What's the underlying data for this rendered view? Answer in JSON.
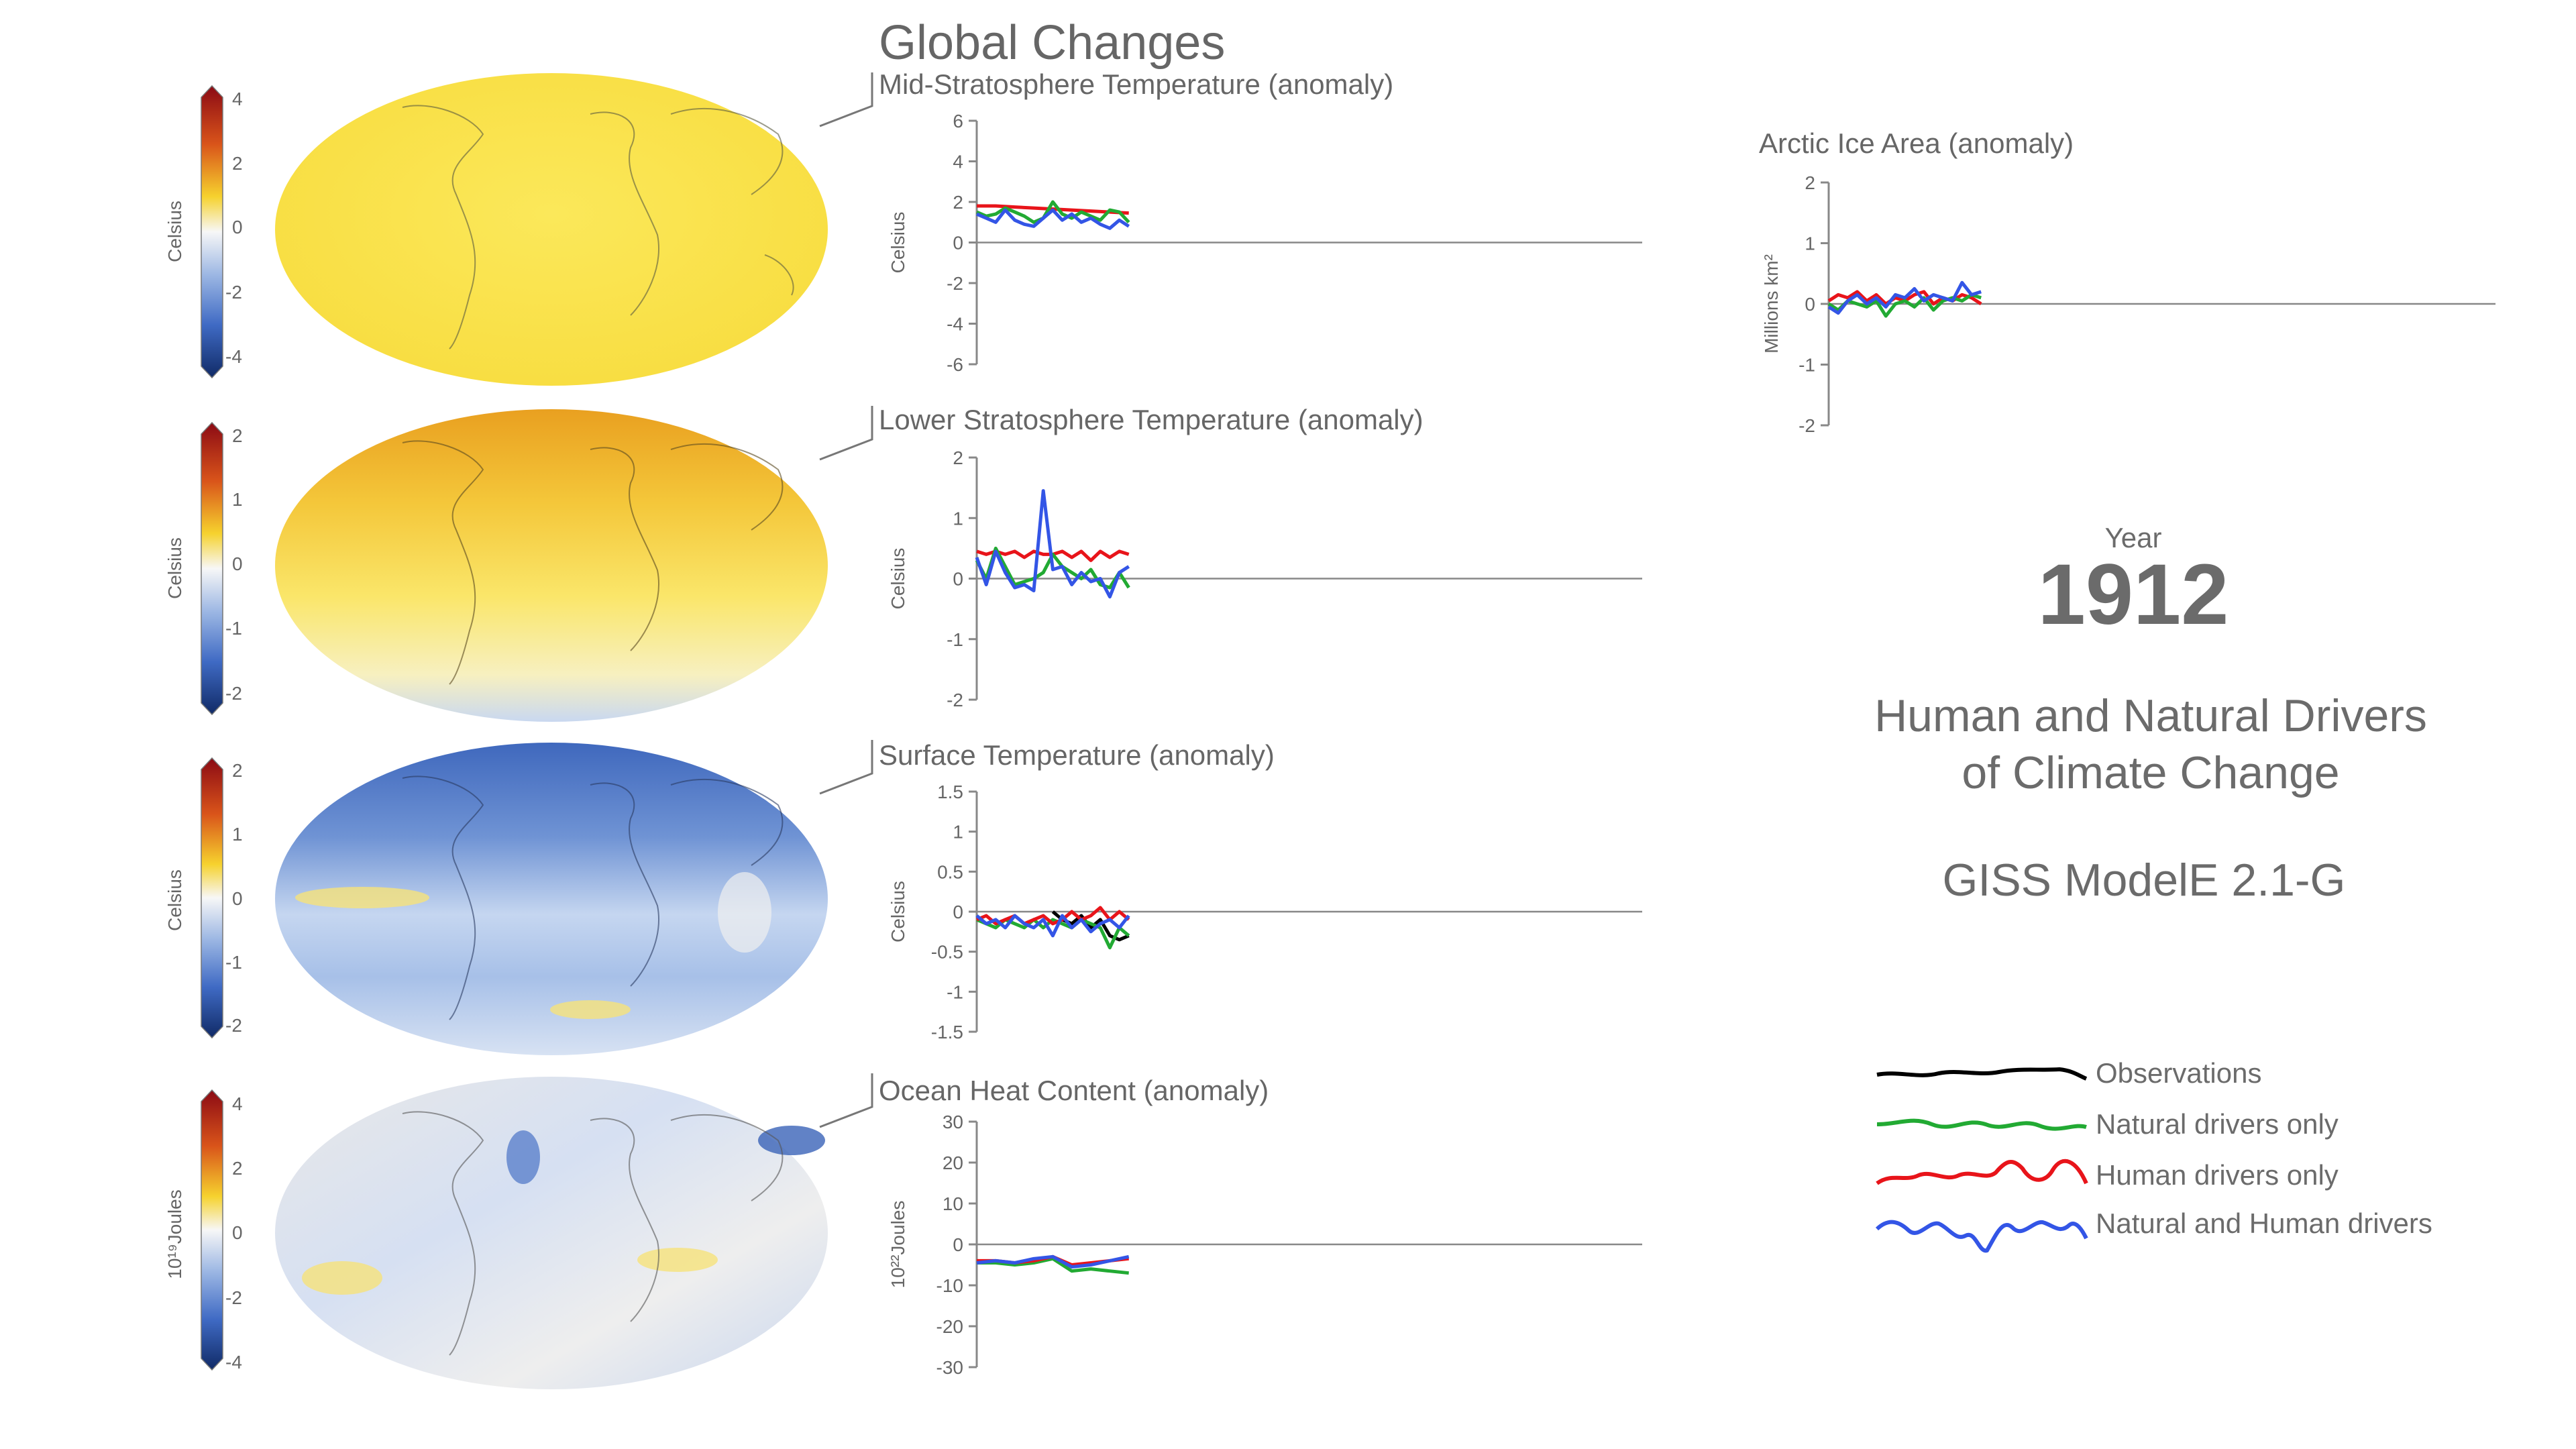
{
  "header": {
    "title": "Global Changes"
  },
  "year_block": {
    "label": "Year",
    "value": "1912"
  },
  "info": {
    "title_line1": "Human and Natural Drivers",
    "title_line2": "of Climate Change",
    "model": "GISS ModelE 2.1-G"
  },
  "legend": {
    "items": [
      {
        "label": "Observations",
        "color": "#000000"
      },
      {
        "label": "Natural drivers only",
        "color": "#22aa33"
      },
      {
        "label": "Human drivers only",
        "color": "#e8141a"
      },
      {
        "label": "Natural and Human drivers",
        "color": "#3355e6"
      }
    ]
  },
  "maps": [
    {
      "name": "map-mid-stratosphere",
      "unit": "Celsius",
      "ticks": [
        "4",
        "2",
        "0",
        "-2",
        "-4"
      ],
      "theme": "warm"
    },
    {
      "name": "map-lower-stratosphere",
      "unit": "Celsius",
      "ticks": [
        "2",
        "1",
        "0",
        "-1",
        "-2"
      ],
      "theme": "orange"
    },
    {
      "name": "map-surface",
      "unit": "Celsius",
      "ticks": [
        "2",
        "1",
        "0",
        "-1",
        "-2"
      ],
      "theme": "cool"
    },
    {
      "name": "map-ocean-heat",
      "unit": "10¹⁹Joules",
      "ticks": [
        "4",
        "2",
        "0",
        "-2",
        "-4"
      ],
      "theme": "ocean"
    }
  ],
  "chart_data": [
    {
      "type": "line",
      "title": "Mid-Stratosphere Temperature (anomaly)",
      "ylabel": "Celsius",
      "ylim": [
        -6,
        6
      ],
      "yticks": [
        6,
        4,
        2,
        0,
        -2,
        -4,
        -6
      ],
      "ytick_labels": [
        "6",
        "4",
        "2",
        "0",
        "-2",
        "-4",
        "-6"
      ],
      "xlim": [
        1880,
        2020
      ],
      "series": [
        {
          "name": "Human drivers only",
          "color": "#e8141a",
          "x": [
            1880,
            1884,
            1888,
            1892,
            1896,
            1900,
            1904,
            1908,
            1912
          ],
          "y": [
            1.8,
            1.8,
            1.75,
            1.7,
            1.65,
            1.6,
            1.55,
            1.5,
            1.45
          ]
        },
        {
          "name": "Natural drivers only",
          "color": "#22aa33",
          "x": [
            1880,
            1882,
            1884,
            1886,
            1888,
            1890,
            1892,
            1894,
            1896,
            1898,
            1900,
            1902,
            1904,
            1906,
            1908,
            1910,
            1912
          ],
          "y": [
            1.5,
            1.3,
            1.4,
            1.7,
            1.5,
            1.3,
            1.0,
            1.2,
            2.0,
            1.4,
            1.2,
            1.5,
            1.3,
            1.1,
            1.6,
            1.5,
            1.0
          ]
        },
        {
          "name": "Natural and Human drivers",
          "color": "#3355e6",
          "x": [
            1880,
            1882,
            1884,
            1886,
            1888,
            1890,
            1892,
            1894,
            1896,
            1898,
            1900,
            1902,
            1904,
            1906,
            1908,
            1910,
            1912
          ],
          "y": [
            1.4,
            1.2,
            1.0,
            1.6,
            1.1,
            0.9,
            0.8,
            1.2,
            1.6,
            1.1,
            1.4,
            1.0,
            1.2,
            0.9,
            0.7,
            1.1,
            0.8
          ]
        }
      ]
    },
    {
      "type": "line",
      "title": "Lower Stratosphere Temperature (anomaly)",
      "ylabel": "Celsius",
      "ylim": [
        -2,
        2
      ],
      "yticks": [
        2,
        1,
        0,
        -1,
        -2
      ],
      "ytick_labels": [
        "2",
        "1",
        "0",
        "-1",
        "-2"
      ],
      "xlim": [
        1880,
        2020
      ],
      "series": [
        {
          "name": "Human drivers only",
          "color": "#e8141a",
          "x": [
            1880,
            1882,
            1884,
            1886,
            1888,
            1890,
            1892,
            1894,
            1896,
            1898,
            1900,
            1902,
            1904,
            1906,
            1908,
            1910,
            1912
          ],
          "y": [
            0.45,
            0.4,
            0.45,
            0.4,
            0.45,
            0.35,
            0.45,
            0.4,
            0.4,
            0.45,
            0.35,
            0.45,
            0.3,
            0.45,
            0.35,
            0.45,
            0.4
          ]
        },
        {
          "name": "Natural drivers only",
          "color": "#22aa33",
          "x": [
            1880,
            1882,
            1884,
            1886,
            1888,
            1890,
            1892,
            1894,
            1896,
            1898,
            1900,
            1902,
            1904,
            1906,
            1908,
            1910,
            1912
          ],
          "y": [
            0.3,
            0.0,
            0.5,
            0.2,
            -0.1,
            -0.05,
            0.0,
            0.1,
            0.4,
            0.2,
            0.1,
            0.0,
            0.15,
            -0.1,
            -0.15,
            0.1,
            -0.15
          ]
        },
        {
          "name": "Natural and Human drivers",
          "color": "#3355e6",
          "x": [
            1880,
            1882,
            1884,
            1886,
            1888,
            1890,
            1892,
            1894,
            1896,
            1898,
            1900,
            1902,
            1904,
            1906,
            1908,
            1910,
            1912
          ],
          "y": [
            0.35,
            -0.1,
            0.45,
            0.1,
            -0.15,
            -0.1,
            -0.2,
            1.45,
            0.15,
            0.2,
            -0.1,
            0.1,
            -0.05,
            0.0,
            -0.3,
            0.1,
            0.2
          ]
        }
      ]
    },
    {
      "type": "line",
      "title": "Surface Temperature (anomaly)",
      "ylabel": "Celsius",
      "ylim": [
        -1.5,
        1.5
      ],
      "yticks": [
        1.5,
        1,
        0.5,
        0,
        -0.5,
        -1,
        -1.5
      ],
      "ytick_labels": [
        "1.5",
        "1",
        "0.5",
        "0",
        "-0.5",
        "-1",
        "-1.5"
      ],
      "xlim": [
        1880,
        2020
      ],
      "series": [
        {
          "name": "Observations",
          "color": "#000000",
          "x": [
            1896,
            1898,
            1900,
            1902,
            1904,
            1906,
            1908,
            1910,
            1912
          ],
          "y": [
            0.0,
            -0.1,
            -0.15,
            -0.05,
            -0.2,
            -0.1,
            -0.3,
            -0.35,
            -0.3
          ]
        },
        {
          "name": "Natural drivers only",
          "color": "#22aa33",
          "x": [
            1880,
            1882,
            1884,
            1886,
            1888,
            1890,
            1892,
            1894,
            1896,
            1898,
            1900,
            1902,
            1904,
            1906,
            1908,
            1910,
            1912
          ],
          "y": [
            -0.1,
            -0.15,
            -0.2,
            -0.1,
            -0.15,
            -0.2,
            -0.1,
            -0.2,
            -0.1,
            -0.15,
            -0.2,
            -0.1,
            -0.15,
            -0.2,
            -0.45,
            -0.2,
            -0.3
          ]
        },
        {
          "name": "Human drivers only",
          "color": "#e8141a",
          "x": [
            1880,
            1882,
            1884,
            1886,
            1888,
            1890,
            1892,
            1894,
            1896,
            1898,
            1900,
            1902,
            1904,
            1906,
            1908,
            1910,
            1912
          ],
          "y": [
            -0.1,
            -0.05,
            -0.15,
            -0.1,
            -0.05,
            -0.15,
            -0.1,
            -0.05,
            -0.15,
            -0.1,
            0.0,
            -0.1,
            -0.05,
            0.05,
            -0.1,
            0.0,
            -0.1
          ]
        },
        {
          "name": "Natural and Human drivers",
          "color": "#3355e6",
          "x": [
            1880,
            1882,
            1884,
            1886,
            1888,
            1890,
            1892,
            1894,
            1896,
            1898,
            1900,
            1902,
            1904,
            1906,
            1908,
            1910,
            1912
          ],
          "y": [
            -0.05,
            -0.15,
            -0.1,
            -0.2,
            -0.05,
            -0.15,
            -0.2,
            -0.1,
            -0.3,
            -0.05,
            -0.2,
            -0.1,
            -0.25,
            -0.15,
            -0.1,
            -0.2,
            -0.05
          ]
        }
      ]
    },
    {
      "type": "line",
      "title": "Ocean Heat Content (anomaly)",
      "ylabel": "10²²Joules",
      "ylim": [
        -30,
        30
      ],
      "yticks": [
        30,
        20,
        10,
        0,
        -10,
        -20,
        -30
      ],
      "ytick_labels": [
        "30",
        "20",
        "10",
        "0",
        "-10",
        "-20",
        "-30"
      ],
      "xlim": [
        1880,
        2020
      ],
      "series": [
        {
          "name": "Natural drivers only",
          "color": "#22aa33",
          "x": [
            1880,
            1884,
            1888,
            1892,
            1896,
            1900,
            1904,
            1908,
            1912
          ],
          "y": [
            -4.5,
            -4.5,
            -5,
            -4.5,
            -3.5,
            -6.5,
            -6,
            -6.5,
            -7
          ]
        },
        {
          "name": "Human drivers only",
          "color": "#e8141a",
          "x": [
            1880,
            1884,
            1888,
            1892,
            1896,
            1900,
            1904,
            1908,
            1912
          ],
          "y": [
            -4,
            -4,
            -4.5,
            -4,
            -3,
            -5,
            -4.5,
            -4,
            -3.5
          ]
        },
        {
          "name": "Natural and Human drivers",
          "color": "#3355e6",
          "x": [
            1880,
            1884,
            1888,
            1892,
            1896,
            1900,
            1904,
            1908,
            1912
          ],
          "y": [
            -4.5,
            -4,
            -4.5,
            -3.5,
            -3,
            -5.5,
            -5,
            -4,
            -3
          ]
        }
      ]
    },
    {
      "type": "line",
      "title": "Arctic Ice Area (anomaly)",
      "ylabel": "Millions km²",
      "ylim": [
        -2,
        2
      ],
      "yticks": [
        2,
        1,
        0,
        -1,
        -2
      ],
      "ytick_labels": [
        "2",
        "1",
        "0",
        "-1",
        "-2"
      ],
      "xlim": [
        1880,
        2020
      ],
      "series": [
        {
          "name": "Human drivers only",
          "color": "#e8141a",
          "x": [
            1880,
            1882,
            1884,
            1886,
            1888,
            1890,
            1892,
            1894,
            1896,
            1898,
            1900,
            1902,
            1904,
            1906,
            1908,
            1910,
            1912
          ],
          "y": [
            0.05,
            0.15,
            0.1,
            0.2,
            0.05,
            0.15,
            0.0,
            0.1,
            0.05,
            0.15,
            0.2,
            0.0,
            0.1,
            0.05,
            0.15,
            0.1,
            0.0
          ]
        },
        {
          "name": "Natural drivers only",
          "color": "#22aa33",
          "x": [
            1880,
            1882,
            1884,
            1886,
            1888,
            1890,
            1892,
            1894,
            1896,
            1898,
            1900,
            1902,
            1904,
            1906,
            1908,
            1910,
            1912
          ],
          "y": [
            0.0,
            -0.1,
            0.05,
            0.0,
            -0.05,
            0.05,
            -0.2,
            0.0,
            0.05,
            -0.05,
            0.1,
            -0.1,
            0.05,
            0.1,
            0.05,
            0.15,
            0.1
          ]
        },
        {
          "name": "Natural and Human drivers",
          "color": "#3355e6",
          "x": [
            1880,
            1882,
            1884,
            1886,
            1888,
            1890,
            1892,
            1894,
            1896,
            1898,
            1900,
            1902,
            1904,
            1906,
            1908,
            1910,
            1912
          ],
          "y": [
            -0.05,
            -0.15,
            0.05,
            0.15,
            0.0,
            0.1,
            -0.05,
            0.15,
            0.1,
            0.25,
            0.05,
            0.15,
            0.1,
            0.05,
            0.35,
            0.15,
            0.2
          ]
        }
      ]
    }
  ]
}
